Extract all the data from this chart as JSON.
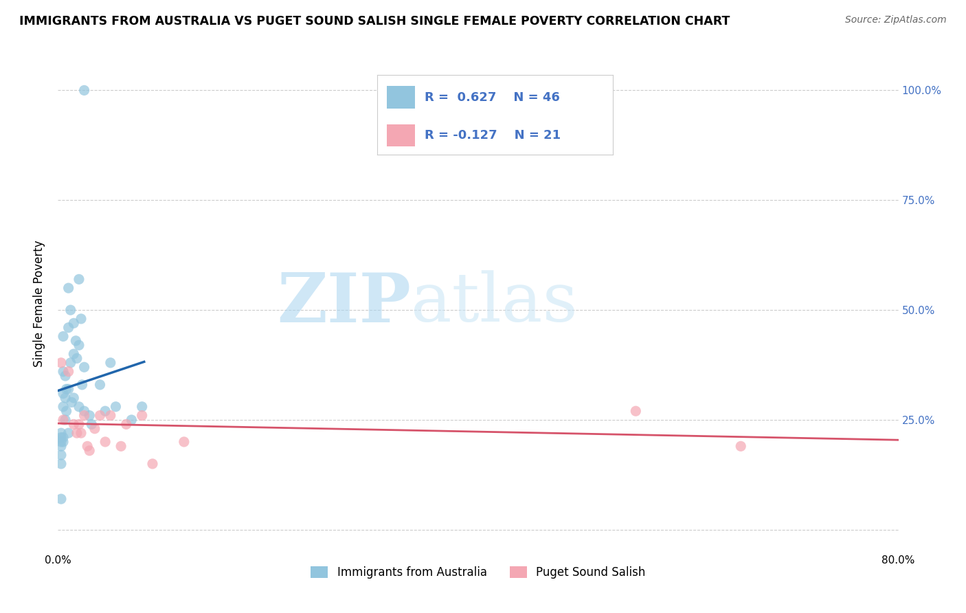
{
  "title": "IMMIGRANTS FROM AUSTRALIA VS PUGET SOUND SALISH SINGLE FEMALE POVERTY CORRELATION CHART",
  "source": "Source: ZipAtlas.com",
  "ylabel": "Single Female Poverty",
  "y_ticks": [
    0.0,
    0.25,
    0.5,
    0.75,
    1.0
  ],
  "xlim": [
    0.0,
    0.8
  ],
  "ylim": [
    -0.05,
    1.08
  ],
  "legend1_label": "Immigrants from Australia",
  "legend2_label": "Puget Sound Salish",
  "R1": 0.627,
  "N1": 46,
  "R2": -0.127,
  "N2": 21,
  "blue_color": "#92c5de",
  "blue_line_color": "#2166ac",
  "pink_color": "#f4a7b3",
  "pink_line_color": "#d6536a",
  "watermark_zip": "ZIP",
  "watermark_atlas": "atlas",
  "blue_dots_x": [
    0.003,
    0.003,
    0.003,
    0.003,
    0.003,
    0.003,
    0.005,
    0.005,
    0.005,
    0.005,
    0.005,
    0.005,
    0.007,
    0.007,
    0.007,
    0.008,
    0.008,
    0.01,
    0.01,
    0.01,
    0.01,
    0.012,
    0.012,
    0.013,
    0.015,
    0.015,
    0.015,
    0.017,
    0.018,
    0.02,
    0.02,
    0.02,
    0.022,
    0.023,
    0.025,
    0.025,
    0.025,
    0.03,
    0.032,
    0.04,
    0.045,
    0.05,
    0.055,
    0.07,
    0.08,
    0.003
  ],
  "blue_dots_y": [
    0.22,
    0.21,
    0.2,
    0.19,
    0.17,
    0.15,
    0.44,
    0.36,
    0.31,
    0.28,
    0.21,
    0.2,
    0.35,
    0.3,
    0.25,
    0.32,
    0.27,
    0.55,
    0.46,
    0.32,
    0.22,
    0.5,
    0.38,
    0.29,
    0.47,
    0.4,
    0.3,
    0.43,
    0.39,
    0.57,
    0.42,
    0.28,
    0.48,
    0.33,
    1.0,
    0.37,
    0.27,
    0.26,
    0.24,
    0.33,
    0.27,
    0.38,
    0.28,
    0.25,
    0.28,
    0.07
  ],
  "pink_dots_x": [
    0.003,
    0.005,
    0.01,
    0.015,
    0.018,
    0.02,
    0.022,
    0.025,
    0.028,
    0.03,
    0.035,
    0.04,
    0.045,
    0.05,
    0.06,
    0.065,
    0.08,
    0.09,
    0.12,
    0.55,
    0.65
  ],
  "pink_dots_y": [
    0.38,
    0.25,
    0.36,
    0.24,
    0.22,
    0.24,
    0.22,
    0.26,
    0.19,
    0.18,
    0.23,
    0.26,
    0.2,
    0.26,
    0.19,
    0.24,
    0.26,
    0.15,
    0.2,
    0.27,
    0.19
  ]
}
